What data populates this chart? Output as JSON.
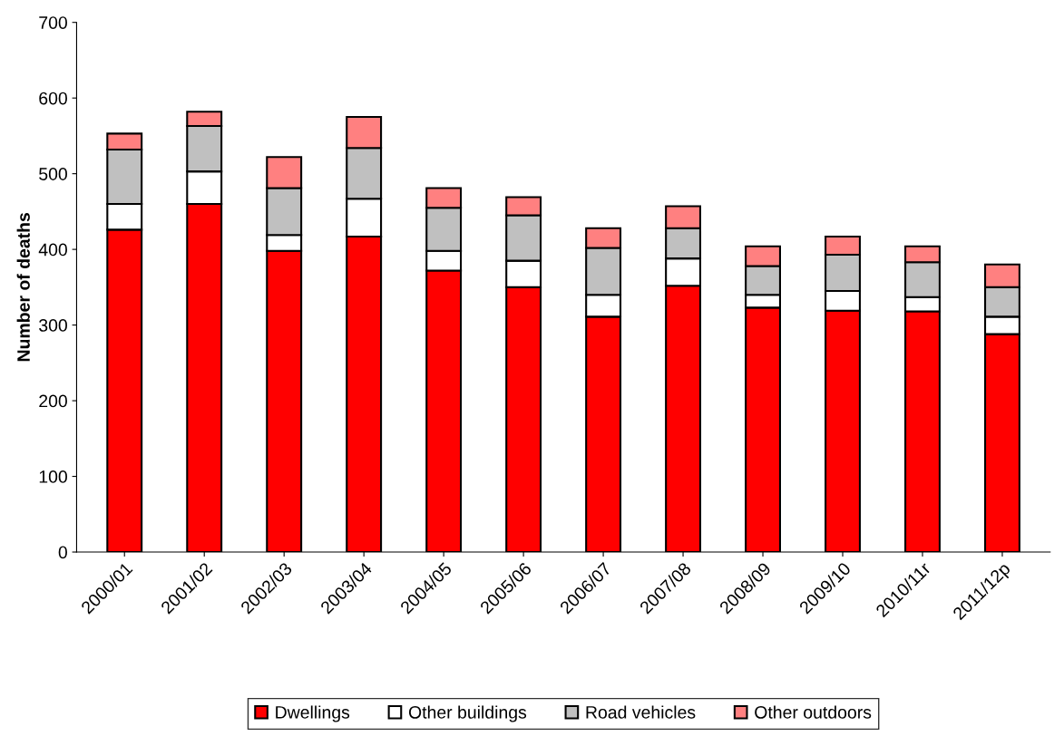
{
  "chart_data": {
    "type": "bar",
    "stacked": true,
    "ylabel": "Number of deaths",
    "categories": [
      "2000/01",
      "2001/02",
      "2002/03",
      "2003/04",
      "2004/05",
      "2005/06",
      "2006/07",
      "2007/08",
      "2008/09",
      "2009/10",
      "2010/11r",
      "2011/12p"
    ],
    "series": [
      {
        "name": "Dwellings",
        "color": "#ff0000",
        "values": [
          426,
          460,
          398,
          417,
          372,
          350,
          311,
          352,
          323,
          319,
          318,
          288
        ]
      },
      {
        "name": "Other buildings",
        "color": "#ffffff",
        "values": [
          34,
          43,
          21,
          50,
          26,
          35,
          29,
          36,
          17,
          26,
          19,
          23
        ]
      },
      {
        "name": "Road vehicles",
        "color": "#c0c0c0",
        "values": [
          72,
          60,
          62,
          67,
          57,
          60,
          62,
          40,
          38,
          48,
          46,
          39
        ]
      },
      {
        "name": "Other outdoors",
        "color": "#ff8080",
        "values": [
          21,
          19,
          41,
          41,
          26,
          24,
          26,
          29,
          26,
          24,
          21,
          30
        ]
      }
    ],
    "ylim": [
      0,
      700
    ],
    "yticks": [
      0,
      100,
      200,
      300,
      400,
      500,
      600,
      700
    ],
    "grid": false,
    "legend": "bottom"
  }
}
